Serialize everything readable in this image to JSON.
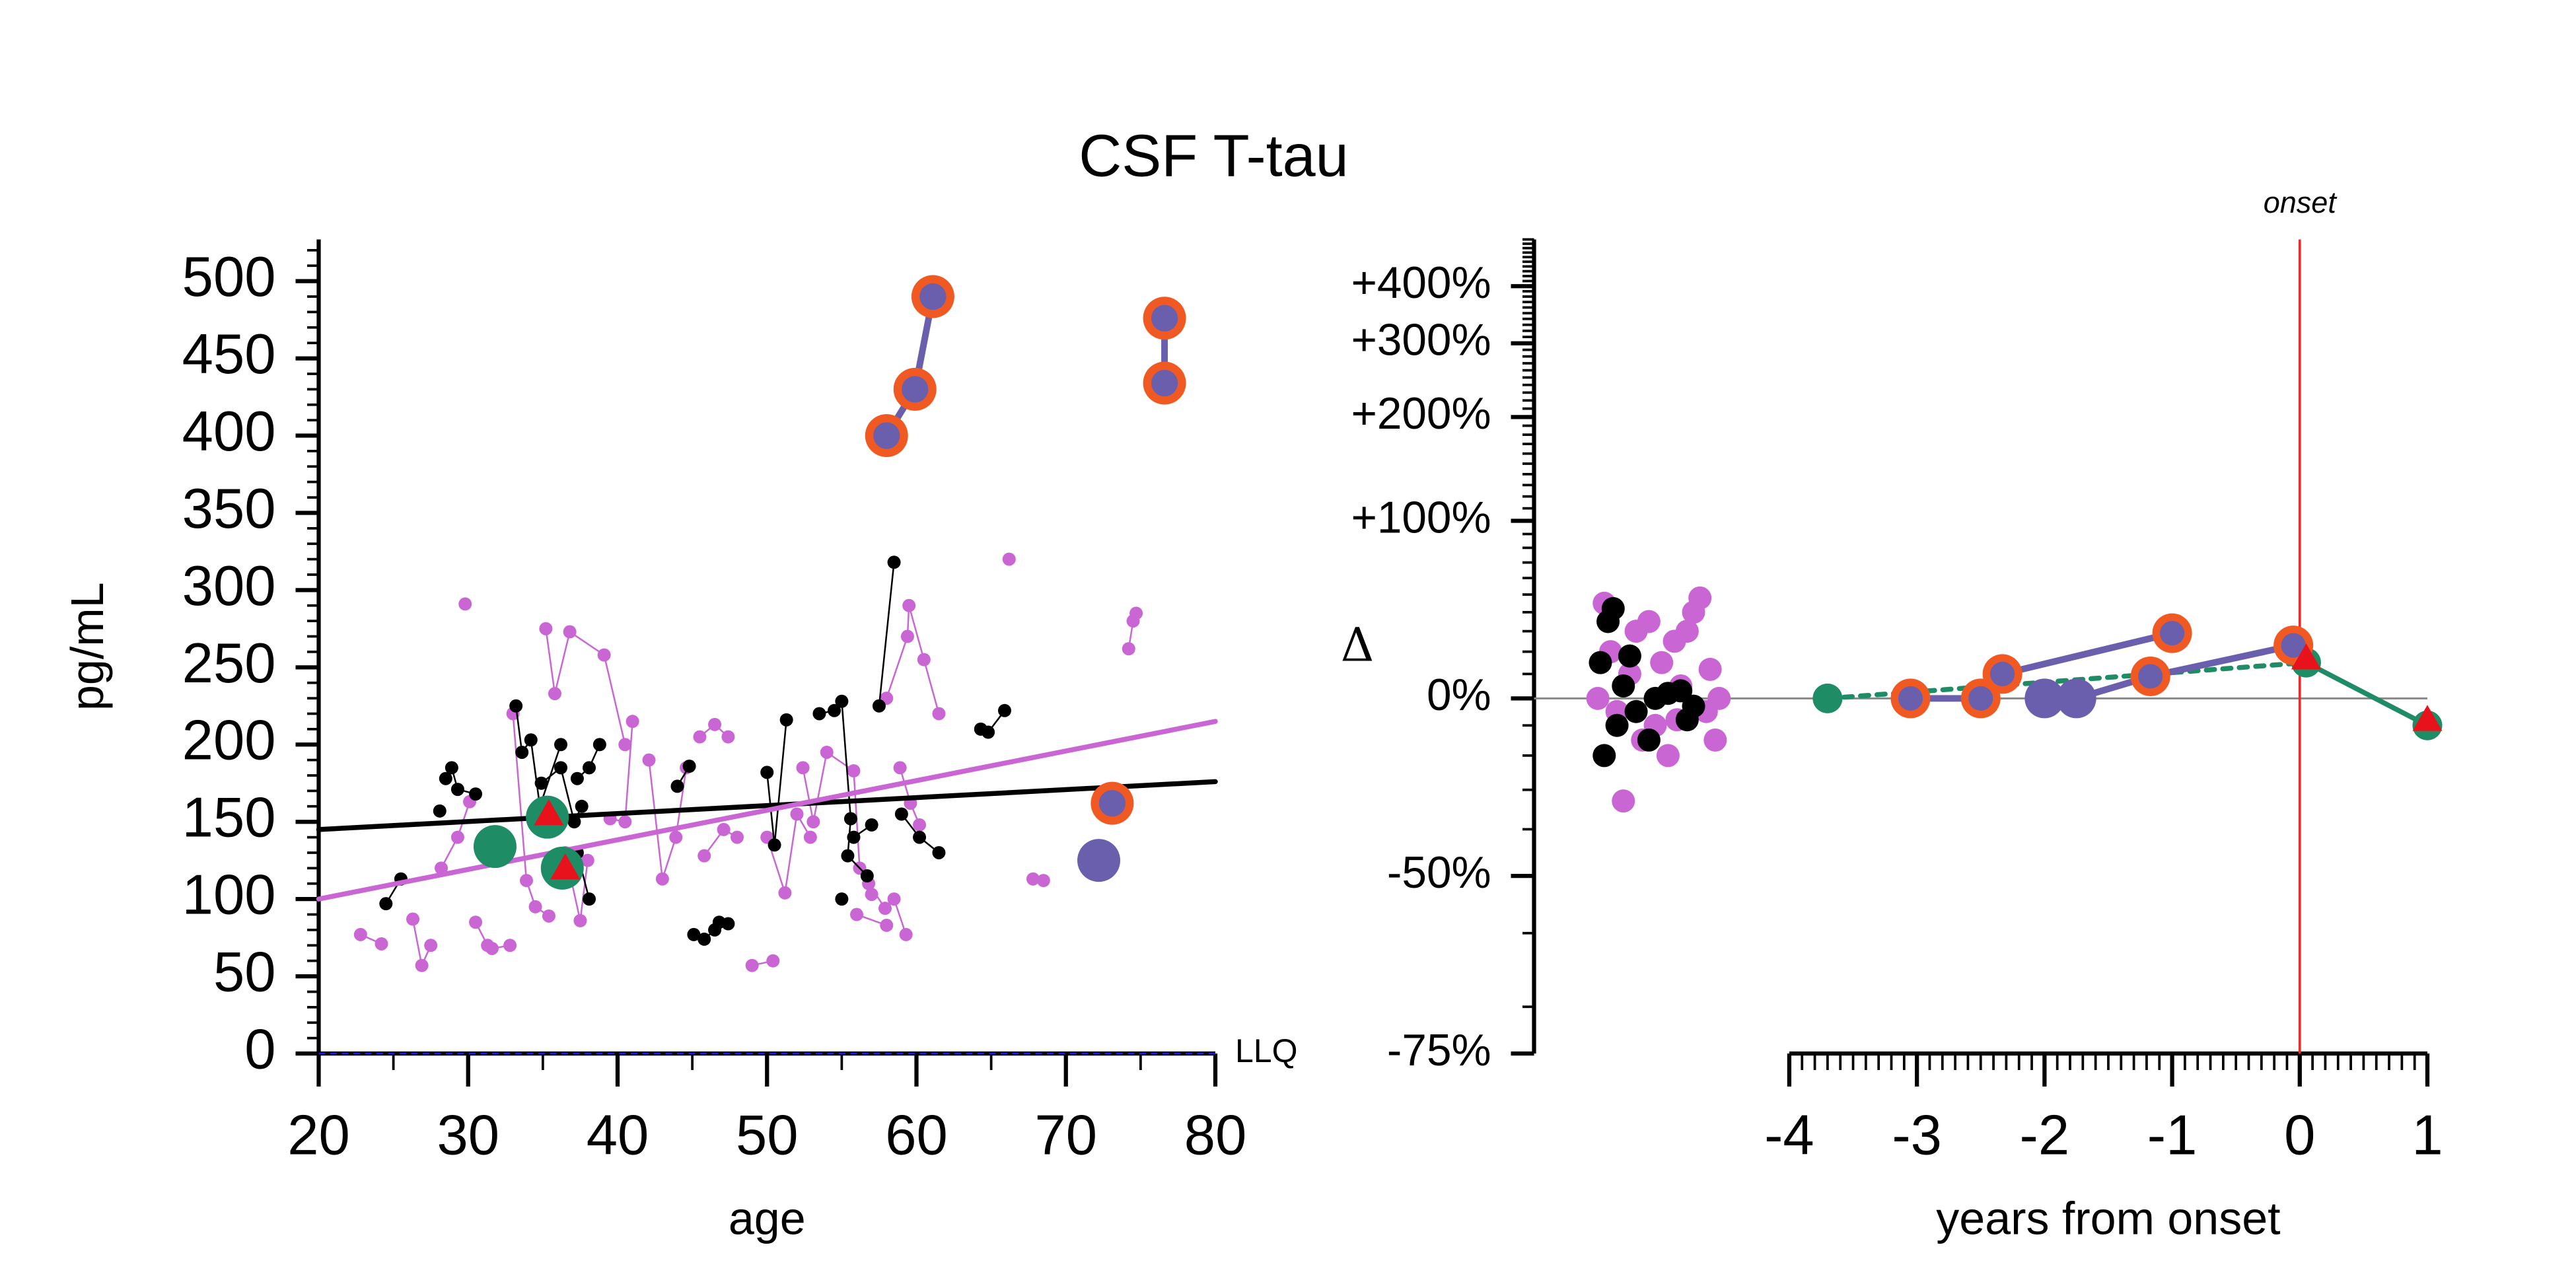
{
  "title": "CSF T-tau",
  "chart_data": [
    {
      "type": "scatter",
      "xlabel": "age",
      "ylabel": "pg/mL",
      "xlim": [
        20,
        80
      ],
      "xticks": [
        20,
        30,
        40,
        50,
        60,
        70,
        80
      ],
      "xminor_step": 5,
      "ylim": [
        0,
        527
      ],
      "yticks": [
        0,
        50,
        100,
        150,
        200,
        250,
        300,
        350,
        400,
        450,
        500
      ],
      "yminor_step": 10,
      "hlines": [
        {
          "value": 0,
          "label": "LLQ",
          "color": "#1a1ad8",
          "dashed": true
        }
      ],
      "series": [
        {
          "color": "#c966d4",
          "marker": "dot",
          "size": 4,
          "line": "solid",
          "line_width": 1,
          "x": [
            22.8,
            24.2
          ],
          "values": [
            77,
            71
          ]
        },
        {
          "color": "#c966d4",
          "marker": "dot",
          "size": 4,
          "line": "solid",
          "line_width": 1,
          "x": [
            26.3,
            26.9,
            27.5
          ],
          "values": [
            87,
            57,
            70
          ]
        },
        {
          "color": "#c966d4",
          "marker": "dot",
          "size": 4,
          "line": "solid",
          "line_width": 1,
          "x": [
            28.2,
            29.3,
            30.1
          ],
          "values": [
            120,
            140,
            163
          ]
        },
        {
          "color": "#c966d4",
          "marker": "dot",
          "size": 4,
          "line": "solid",
          "line_width": 1,
          "x": [
            29.8
          ],
          "values": [
            291
          ]
        },
        {
          "color": "#c966d4",
          "marker": "dot",
          "size": 4,
          "line": "solid",
          "line_width": 1,
          "x": [
            30.5,
            31.3,
            31.6,
            32.8
          ],
          "values": [
            85,
            70,
            68,
            70
          ]
        },
        {
          "color": "#c966d4",
          "marker": "dot",
          "size": 4,
          "line": "solid",
          "line_width": 1,
          "x": [
            33.0,
            33.9,
            34.5,
            35.4
          ],
          "values": [
            220,
            112,
            95,
            89
          ]
        },
        {
          "color": "#c966d4",
          "marker": "dot",
          "size": 4,
          "line": "solid",
          "line_width": 1,
          "x": [
            35.2,
            35.8,
            36.8,
            39.1,
            40.5
          ],
          "values": [
            275,
            233,
            273,
            258,
            200
          ]
        },
        {
          "color": "#c966d4",
          "marker": "dot",
          "size": 4,
          "line": "solid",
          "line_width": 1,
          "x": [
            36.5,
            37.5,
            38.0
          ],
          "values": [
            130,
            86,
            125
          ]
        },
        {
          "color": "#c966d4",
          "marker": "dot",
          "size": 4,
          "line": "solid",
          "line_width": 1,
          "x": [
            39.5,
            40.5,
            41.0
          ],
          "values": [
            152,
            150,
            215
          ]
        },
        {
          "color": "#c966d4",
          "marker": "dot",
          "size": 4,
          "line": "solid",
          "line_width": 1,
          "x": [
            42.1,
            43.0,
            43.9,
            44.6
          ],
          "values": [
            190,
            113,
            140,
            185
          ]
        },
        {
          "color": "#c966d4",
          "marker": "dot",
          "size": 4,
          "line": "solid",
          "line_width": 1,
          "x": [
            45.5,
            46.5,
            47.4
          ],
          "values": [
            205,
            213,
            205
          ]
        },
        {
          "color": "#c966d4",
          "marker": "dot",
          "size": 4,
          "line": "solid",
          "line_width": 1,
          "x": [
            45.8,
            47.1,
            48.0
          ],
          "values": [
            128,
            145,
            140
          ]
        },
        {
          "color": "#c966d4",
          "marker": "dot",
          "size": 4,
          "line": "solid",
          "line_width": 1,
          "x": [
            49.0,
            50.4
          ],
          "values": [
            57,
            60
          ]
        },
        {
          "color": "#c966d4",
          "marker": "dot",
          "size": 4,
          "line": "solid",
          "line_width": 1,
          "x": [
            50.0,
            51.2,
            52.0,
            52.9
          ],
          "values": [
            140,
            104,
            155,
            140
          ]
        },
        {
          "color": "#c966d4",
          "marker": "dot",
          "size": 4,
          "line": "solid",
          "line_width": 1,
          "x": [
            52.4,
            53.1,
            54.0,
            55.8,
            56.2,
            57.0
          ],
          "values": [
            185,
            150,
            195,
            183,
            120,
            103
          ]
        },
        {
          "color": "#c966d4",
          "marker": "dot",
          "size": 4,
          "line": "solid",
          "line_width": 1,
          "x": [
            56.8,
            57.9,
            58.5,
            59.3
          ],
          "values": [
            110,
            94,
            100,
            77
          ]
        },
        {
          "color": "#c966d4",
          "marker": "dot",
          "size": 4,
          "line": "solid",
          "line_width": 1,
          "x": [
            58.0,
            59.4,
            59.5,
            60.5,
            61.5
          ],
          "values": [
            230,
            270,
            290,
            255,
            220
          ]
        },
        {
          "color": "#c966d4",
          "marker": "dot",
          "size": 4,
          "line": "solid",
          "line_width": 1,
          "x": [
            58.9,
            59.6,
            60.2
          ],
          "values": [
            185,
            162,
            148
          ]
        },
        {
          "color": "#c966d4",
          "marker": "dot",
          "size": 4,
          "line": "solid",
          "line_width": 1,
          "x": [
            66.2
          ],
          "values": [
            320
          ]
        },
        {
          "color": "#c966d4",
          "marker": "dot",
          "size": 4,
          "line": "solid",
          "line_width": 1,
          "x": [
            67.8,
            68.5
          ],
          "values": [
            113,
            112
          ]
        },
        {
          "color": "#c966d4",
          "marker": "dot",
          "size": 4,
          "line": "solid",
          "line_width": 1,
          "x": [
            74.2,
            74.5,
            74.7
          ],
          "values": [
            262,
            280,
            285
          ]
        },
        {
          "color": "#c966d4",
          "marker": "dot",
          "size": 4,
          "line": "solid",
          "line_width": 1,
          "x": [
            56.0,
            58.0
          ],
          "values": [
            90,
            83
          ]
        },
        {
          "color": "#000000",
          "marker": "dot",
          "size": 4,
          "line": "solid",
          "line_width": 1,
          "x": [
            24.5,
            25.5
          ],
          "values": [
            97,
            113
          ]
        },
        {
          "color": "#000000",
          "marker": "dot",
          "size": 4,
          "line": "solid",
          "line_width": 1,
          "x": [
            28.5,
            28.9,
            29.3,
            30.5
          ],
          "values": [
            178,
            185,
            171,
            168
          ]
        },
        {
          "color": "#000000",
          "marker": "dot",
          "size": 4,
          "line": "solid",
          "line_width": 1,
          "x": [
            28.1
          ],
          "values": [
            157
          ]
        },
        {
          "color": "#000000",
          "marker": "dot",
          "size": 4,
          "line": "solid",
          "line_width": 1,
          "x": [
            33.2,
            33.6,
            34.2,
            34.8,
            36.2
          ],
          "values": [
            225,
            195,
            203,
            160,
            200
          ]
        },
        {
          "color": "#000000",
          "marker": "dot",
          "size": 4,
          "line": "solid",
          "line_width": 1,
          "x": [
            34.9,
            36.2,
            37.1,
            37.6
          ],
          "values": [
            175,
            185,
            150,
            160
          ]
        },
        {
          "color": "#000000",
          "marker": "dot",
          "size": 4,
          "line": "solid",
          "line_width": 1,
          "x": [
            37.3,
            38.1
          ],
          "values": [
            130,
            100
          ]
        },
        {
          "color": "#000000",
          "marker": "dot",
          "size": 4,
          "line": "solid",
          "line_width": 1,
          "x": [
            37.3,
            38.1,
            38.8
          ],
          "values": [
            178,
            185,
            200
          ]
        },
        {
          "color": "#000000",
          "marker": "dot",
          "size": 4,
          "line": "solid",
          "line_width": 1,
          "x": [
            44.0,
            44.8
          ],
          "values": [
            173,
            186
          ]
        },
        {
          "color": "#000000",
          "marker": "dot",
          "size": 4,
          "line": "solid",
          "line_width": 1,
          "x": [
            45.1,
            45.8,
            46.5,
            46.8,
            47.4
          ],
          "values": [
            77,
            74,
            80,
            85,
            84
          ]
        },
        {
          "color": "#000000",
          "marker": "dot",
          "size": 4,
          "line": "solid",
          "line_width": 1,
          "x": [
            50.0,
            50.5,
            51.3
          ],
          "values": [
            182,
            135,
            216
          ]
        },
        {
          "color": "#000000",
          "marker": "dot",
          "size": 4,
          "line": "solid",
          "line_width": 1,
          "x": [
            53.5,
            54.5,
            55.0,
            55.6,
            55.4,
            56.7
          ],
          "values": [
            220,
            222,
            228,
            152,
            128,
            115
          ]
        },
        {
          "color": "#000000",
          "marker": "dot",
          "size": 4,
          "line": "solid",
          "line_width": 1,
          "x": [
            57.5,
            58.5
          ],
          "values": [
            225,
            318
          ]
        },
        {
          "color": "#000000",
          "marker": "dot",
          "size": 4,
          "line": "solid",
          "line_width": 1,
          "x": [
            59.0,
            60.2,
            61.5
          ],
          "values": [
            155,
            140,
            130
          ]
        },
        {
          "color": "#000000",
          "marker": "dot",
          "size": 4,
          "line": "solid",
          "line_width": 1,
          "x": [
            55.0
          ],
          "values": [
            100
          ]
        },
        {
          "color": "#000000",
          "marker": "dot",
          "size": 4,
          "line": "solid",
          "line_width": 1,
          "x": [
            64.3,
            64.8,
            65.9
          ],
          "values": [
            210,
            208,
            222
          ]
        },
        {
          "color": "#000000",
          "marker": "dot",
          "size": 4,
          "line": "solid",
          "line_width": 1,
          "x": [
            55.8,
            57.0
          ],
          "values": [
            140,
            148
          ]
        },
        {
          "color": "#000000",
          "marker": "none",
          "line": "solid",
          "line_width": 3,
          "x": [
            20,
            80
          ],
          "values": [
            145,
            176
          ]
        },
        {
          "color": "#c966d4",
          "marker": "none",
          "line": "solid",
          "line_width": 3,
          "x": [
            20,
            80
          ],
          "values": [
            100,
            215
          ]
        },
        {
          "color": "#1e8c64",
          "marker": "circle",
          "size": 13,
          "line": "none",
          "x": [
            31.8,
            35.3,
            36.3
          ],
          "values": [
            134,
            153,
            120
          ]
        },
        {
          "color": "#6a5fad",
          "marker": "circle",
          "size": 13,
          "line": "none",
          "x": [
            72.2
          ],
          "values": [
            125
          ]
        },
        {
          "color": "#6a5fad",
          "marker": "circle",
          "size": 13,
          "line": "solid",
          "line_width": 4,
          "ring_color": "#f05a22",
          "ringed": [
            true,
            true,
            true
          ],
          "x": [
            58.0,
            59.9,
            61.1
          ],
          "values": [
            400,
            430,
            490
          ]
        },
        {
          "color": "#6a5fad",
          "marker": "circle",
          "size": 13,
          "line": "solid",
          "line_width": 4,
          "ring_color": "#f05a22",
          "ringed": [
            true,
            true
          ],
          "x": [
            76.6,
            76.6
          ],
          "values": [
            476,
            434
          ]
        },
        {
          "color": "#6a5fad",
          "marker": "circle",
          "size": 13,
          "line": "none",
          "ring_color": "#f05a22",
          "ringed": [
            true
          ],
          "x": [
            73.1
          ],
          "values": [
            162
          ]
        },
        {
          "color": "#e8121c",
          "marker": "triangle",
          "size": 9,
          "line": "none",
          "x": [
            35.4,
            36.5
          ],
          "values": [
            155,
            120
          ]
        }
      ]
    },
    {
      "type": "scatter",
      "xlabel": "years from onset",
      "ylabel": "Δ",
      "yscale": "log2-ratio",
      "xlim": [
        -6,
        1
      ],
      "xticks": [
        -4,
        -3,
        -2,
        -1,
        0,
        1
      ],
      "xminor_step": 0.1,
      "ylim": [
        -75,
        500
      ],
      "yticks": [
        {
          "value": -75,
          "label": "-75%"
        },
        {
          "value": -50,
          "label": "-50%"
        },
        {
          "value": 0,
          "label": "0%"
        },
        {
          "value": 100,
          "label": "+100%"
        },
        {
          "value": 200,
          "label": "+200%"
        },
        {
          "value": 300,
          "label": "+300%"
        },
        {
          "value": 400,
          "label": "+400%"
        }
      ],
      "yminor_step": 10,
      "hlines": [
        {
          "value": 0,
          "color": "#888888",
          "dashed": false
        }
      ],
      "vlines": [
        {
          "value": 0,
          "label": "onset",
          "color": "#e03030"
        }
      ],
      "series": [
        {
          "color": "#c966d4",
          "marker": "circle",
          "size": 7,
          "line": "none",
          "x": [
            -5.5,
            -5.45,
            -5.4,
            -5.3,
            -5.25,
            -5.2,
            -5.1,
            -5.05,
            -5.0,
            -4.95,
            -4.9,
            -4.85,
            -4.8,
            -4.75,
            -4.7,
            -4.65,
            -4.62,
            -4.58,
            -4.55,
            -5.35,
            -5.15,
            -4.88
          ],
          "values": [
            0,
            45,
            20,
            -33,
            10,
            30,
            35,
            -10,
            15,
            -20,
            25,
            5,
            30,
            40,
            48,
            -5,
            12,
            -15,
            0,
            -5,
            -15,
            -8
          ]
        },
        {
          "color": "#000000",
          "marker": "circle",
          "size": 7,
          "line": "none",
          "x": [
            -5.48,
            -5.45,
            -5.42,
            -5.38,
            -5.35,
            -5.3,
            -5.25,
            -5.2,
            -5.1,
            -5.05,
            -4.95,
            -4.85,
            -4.8,
            -4.75
          ],
          "values": [
            15,
            -20,
            35,
            42,
            -10,
            5,
            18,
            -5,
            -15,
            0,
            2,
            3,
            -8,
            -3
          ]
        },
        {
          "color": "#1e8c64",
          "marker": "circle",
          "size": 9,
          "line_width": 3,
          "segment_styles": [
            "dashed",
            "solid"
          ],
          "x": [
            -3.7,
            0.05,
            1
          ],
          "values": [
            0,
            15,
            -10
          ]
        },
        {
          "color": "#6a5fad",
          "marker": "circle",
          "size": 12,
          "line": "solid",
          "line_width": 4,
          "ring_color": "#f05a22",
          "ringed": [
            true,
            true,
            true,
            true
          ],
          "x": [
            -3.05,
            -2.5,
            -2.33,
            -1
          ],
          "values": [
            0,
            0,
            10,
            29
          ]
        },
        {
          "color": "#6a5fad",
          "marker": "circle",
          "size": 12,
          "line": "solid",
          "line_width": 4,
          "ring_color": "#f05a22",
          "ringed": [
            false,
            false,
            true,
            true
          ],
          "x": [
            -2.0,
            -1.75,
            -1.17,
            -0.05
          ],
          "values": [
            0,
            0,
            9,
            23
          ]
        },
        {
          "color": "#e8121c",
          "marker": "triangle",
          "size": 9,
          "line": "none",
          "x": [
            0.05,
            1
          ],
          "values": [
            17,
            -8
          ]
        }
      ]
    }
  ]
}
